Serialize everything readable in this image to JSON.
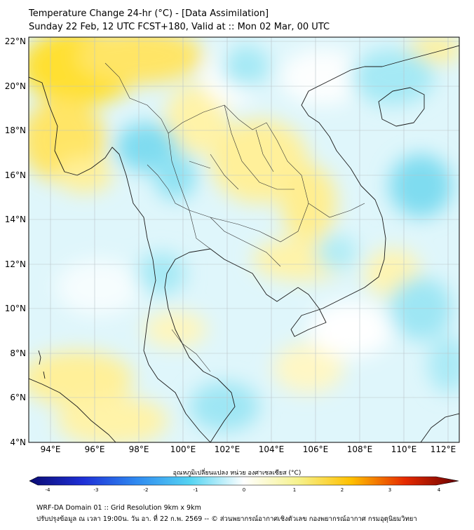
{
  "header": {
    "line1": "Temperature Change 24-hr (°C) - [Data Assimilation]",
    "line2": "Sunday 22 Feb, 12 UTC FCST+180, Valid at :: Mon 02 Mar, 00 UTC"
  },
  "map": {
    "lat_ticks": [
      "22°N",
      "20°N",
      "18°N",
      "16°N",
      "14°N",
      "12°N",
      "10°N",
      "8°N",
      "6°N",
      "4°N"
    ],
    "lon_ticks": [
      "94°E",
      "96°E",
      "98°E",
      "100°E",
      "102°E",
      "104°E",
      "106°E",
      "108°E",
      "110°E",
      "112°E"
    ]
  },
  "colorbar": {
    "label": "อุณหภูมิเปลี่ยนแปลง หน่วย องศาเซลเซียส (°C)",
    "ticks": [
      "-4",
      "-3",
      "-2",
      "-1",
      "0",
      "1",
      "2",
      "3",
      "4"
    ],
    "colors": [
      "#0b0b72",
      "#1e2fd6",
      "#2f8af0",
      "#55d4f2",
      "#ffffff",
      "#f6f28e",
      "#ffc000",
      "#e62a00",
      "#6a0000"
    ]
  },
  "footer": {
    "line1": "WRF-DA Domain 01 :: Grid Resolution 9km x 9km",
    "line2": "ปรับปรุงข้อมูล ณ เวลา 19:00น. วัน อา. ที่ 22 ก.พ. 2569 -- © ส่วนพยากรณ์อากาศเชิงตัวเลข กองพยากรณ์อากาศ กรมอุตุนิยมวิทยา"
  }
}
